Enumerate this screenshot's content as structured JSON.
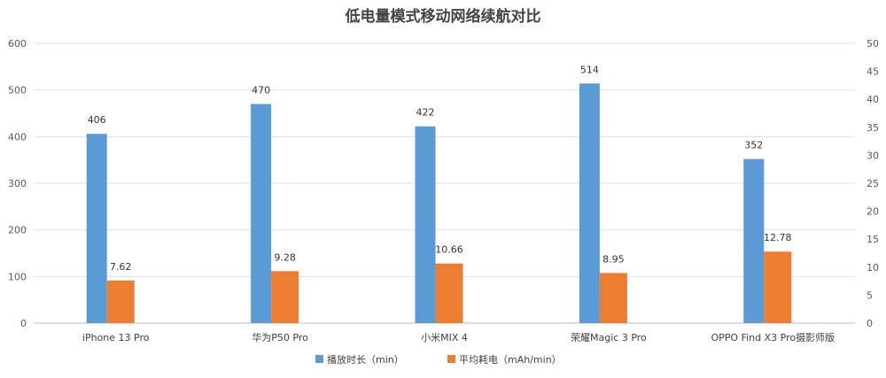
{
  "chart_data": {
    "type": "bar",
    "title": "低电量模式移动网络续航对比",
    "categories": [
      "iPhone 13 Pro",
      "华为P50 Pro",
      "小米MIX 4",
      "荣耀Magic 3 Pro",
      "OPPO Find X3 Pro摄影师版"
    ],
    "series": [
      {
        "name": "播放时长（min）",
        "axis": "left",
        "color": "#5B9BD5",
        "values": [
          406,
          470,
          422,
          514,
          352
        ]
      },
      {
        "name": "平均耗电（mAh/min）",
        "axis": "right",
        "color": "#ED7D31",
        "values": [
          7.62,
          9.28,
          10.66,
          8.95,
          12.78
        ]
      }
    ],
    "y_left": {
      "min": 0,
      "max": 600,
      "step": 100,
      "ticks": [
        "0",
        "100",
        "200",
        "300",
        "400",
        "500",
        "600"
      ]
    },
    "y_right": {
      "min": 0,
      "max": 50,
      "step": 5,
      "ticks": [
        "0",
        "5",
        "10",
        "15",
        "20",
        "25",
        "30",
        "35",
        "40",
        "45",
        "50"
      ]
    },
    "data_labels": [
      [
        "406",
        "470",
        "422",
        "514",
        "352"
      ],
      [
        "7.62",
        "9.28",
        "10.66",
        "8.95",
        "12.78"
      ]
    ],
    "grid": true,
    "legend_position": "bottom"
  }
}
